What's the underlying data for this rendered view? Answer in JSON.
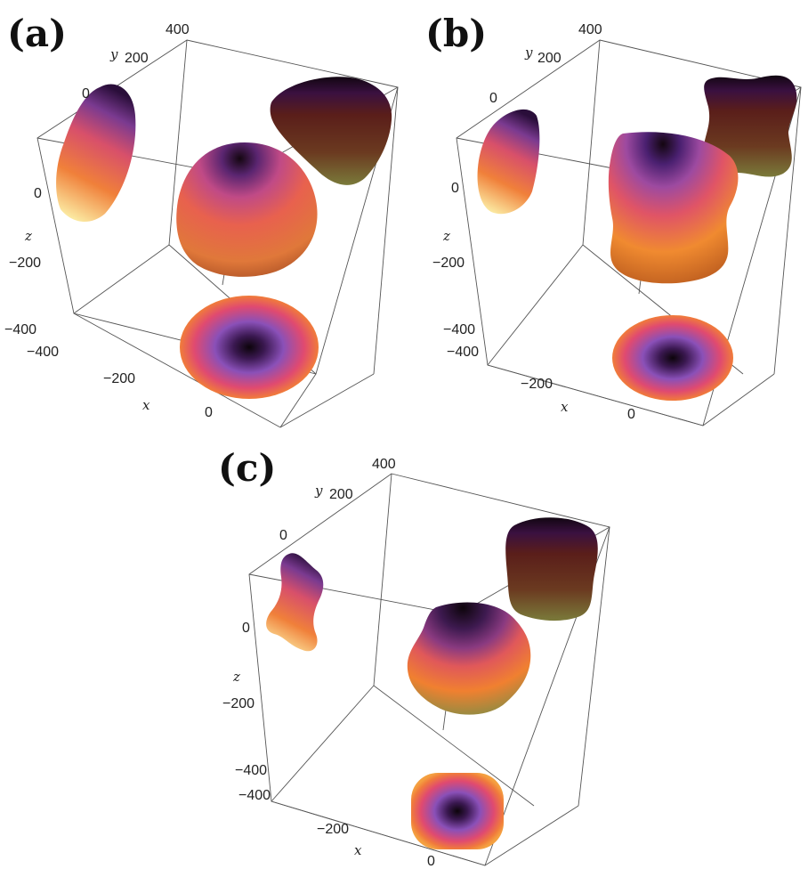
{
  "panels": [
    {
      "letter": "(a)",
      "ticks": {
        "y": [
          "400",
          "200",
          "0"
        ],
        "z": [
          "0",
          "-200",
          "-400"
        ],
        "x": [
          "-400",
          "-200",
          "0"
        ]
      },
      "axis_labels": {
        "x": "x",
        "y": "y",
        "z": "z"
      }
    },
    {
      "letter": "(b)",
      "ticks": {
        "y": [
          "400",
          "200",
          "0"
        ],
        "z": [
          "0",
          "-200",
          "-400"
        ],
        "x": [
          "-400",
          "-200",
          "0"
        ]
      },
      "axis_labels": {
        "x": "x",
        "y": "y",
        "z": "z"
      }
    },
    {
      "letter": "(c)",
      "ticks": {
        "y": [
          "400",
          "200",
          "0"
        ],
        "z": [
          "0",
          "-200",
          "-400"
        ],
        "x": [
          "-400",
          "-200",
          "0"
        ]
      },
      "axis_labels": {
        "x": "x",
        "y": "y",
        "z": "z"
      }
    }
  ],
  "colors": {
    "dark": "#1a0a14",
    "purple": "#6a2a7a",
    "magenta": "#d84a6e",
    "orange": "#f07a3c",
    "yellow": "#fbe08a",
    "olive": "#6b5a2a"
  }
}
